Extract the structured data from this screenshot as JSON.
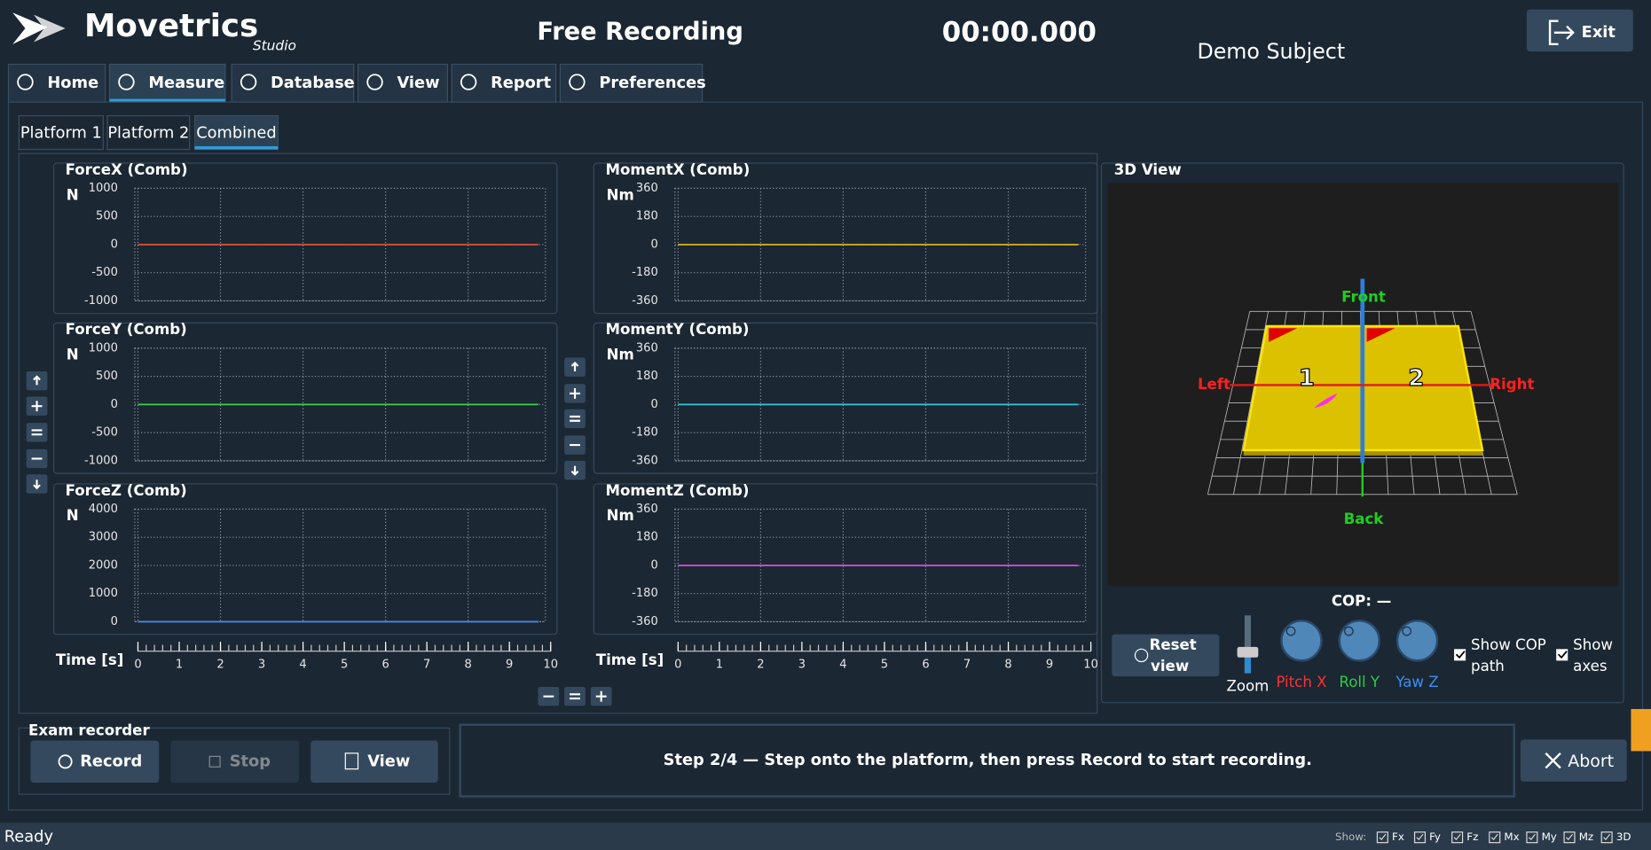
{
  "header": {
    "logo": "Movetrics",
    "logo_sub": "Studio",
    "title": "Free Recording",
    "timer": "00:00.000",
    "subject": "Demo Subject",
    "exit": "Exit"
  },
  "tabs": [
    "Home",
    "Measure",
    "Database",
    "View",
    "Report",
    "Preferences"
  ],
  "subtabs": [
    "Platform 1",
    "Platform 2",
    "Combined"
  ],
  "time_axis": {
    "label": "Time [s]",
    "xlim": [
      0,
      10
    ],
    "xticks": [
      0,
      1,
      2,
      3,
      4,
      5,
      6,
      7,
      8,
      9,
      10
    ]
  },
  "charts": [
    {
      "title": "ForceX (Comb)",
      "unit": "N",
      "ylim": [
        -1000,
        1000
      ],
      "yticks": [
        1000,
        500,
        0,
        -500,
        -1000
      ],
      "x": [
        0,
        9.7
      ],
      "values": [
        0,
        0
      ],
      "color": "#e0503c"
    },
    {
      "title": "ForceY (Comb)",
      "unit": "N",
      "ylim": [
        -1000,
        1000
      ],
      "yticks": [
        1000,
        500,
        0,
        -500,
        -1000
      ],
      "x": [
        0,
        9.7
      ],
      "values": [
        0,
        0
      ],
      "color": "#3fcf4a"
    },
    {
      "title": "ForceZ (Comb)",
      "unit": "N",
      "ylim": [
        0,
        4000
      ],
      "yticks": [
        4000,
        3000,
        2000,
        1000,
        0
      ],
      "x": [
        0,
        9.7
      ],
      "values": [
        0,
        0
      ],
      "color": "#4a86e8"
    },
    {
      "title": "MomentX (Comb)",
      "unit": "Nm",
      "ylim": [
        -360,
        360
      ],
      "yticks": [
        360,
        180,
        0,
        -180,
        -360
      ],
      "x": [
        0,
        9.7
      ],
      "values": [
        0,
        0
      ],
      "color": "#d8b41c"
    },
    {
      "title": "MomentY (Comb)",
      "unit": "Nm",
      "ylim": [
        -360,
        360
      ],
      "yticks": [
        360,
        180,
        0,
        -180,
        -360
      ],
      "x": [
        0,
        9.7
      ],
      "values": [
        0,
        0
      ],
      "color": "#2ec8d8"
    },
    {
      "title": "MomentZ (Comb)",
      "unit": "Nm",
      "ylim": [
        -360,
        360
      ],
      "yticks": [
        360,
        180,
        0,
        -180,
        -360
      ],
      "x": [
        0,
        9.7
      ],
      "values": [
        0,
        0
      ],
      "color": "#d04ad8"
    }
  ],
  "view3d": {
    "title": "3D View",
    "front": "Front",
    "back": "Back",
    "left": "Left",
    "right": "Right",
    "plate1": "1",
    "plate2": "2",
    "cop": "COP: —",
    "reset": [
      "Reset",
      "view"
    ],
    "zoom": "Zoom",
    "knobs": [
      "Pitch X",
      "Roll Y",
      "Yaw Z"
    ],
    "show_cop": [
      "Show COP",
      "path"
    ],
    "show_axes": [
      "Show",
      "axes"
    ]
  },
  "recorder": {
    "title": "Exam recorder",
    "record": "Record",
    "stop": "Stop",
    "view": "View"
  },
  "message": "Step 2/4 — Step onto the platform, then press Record to start recording.",
  "abort": "Abort",
  "status": {
    "text": "Ready",
    "show": "Show:",
    "toggles": [
      "Fx",
      "Fy",
      "Fz",
      "Mx",
      "My",
      "Mz",
      "3D"
    ]
  }
}
